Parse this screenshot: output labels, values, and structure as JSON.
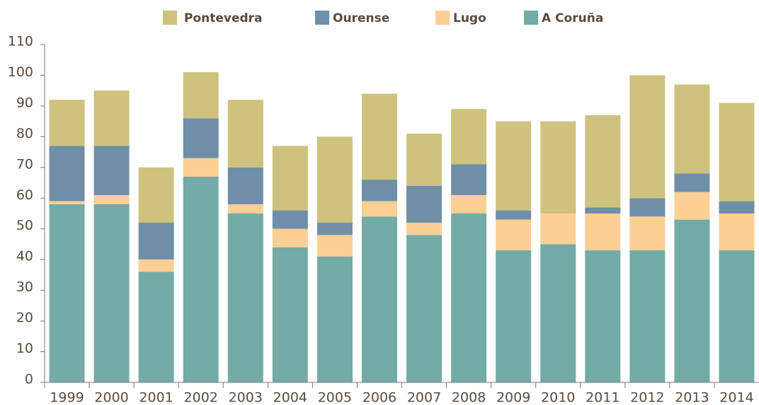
{
  "chart_data": {
    "type": "stacked_bar",
    "categories": [
      "1999",
      "2000",
      "2001",
      "2002",
      "2003",
      "2004",
      "2005",
      "2006",
      "2007",
      "2008",
      "2009",
      "2010",
      "2011",
      "2012",
      "2013",
      "2014"
    ],
    "series": [
      {
        "name": "Pontevedra",
        "color": "#cfc27e",
        "values": [
          15,
          18,
          18,
          15,
          22,
          21,
          28,
          28,
          17,
          18,
          29,
          30,
          30,
          40,
          29,
          32
        ]
      },
      {
        "name": "Ourense",
        "color": "#6f8fa8",
        "values": [
          18,
          16,
          12,
          13,
          12,
          6,
          4,
          7,
          12,
          10,
          3,
          0,
          2,
          6,
          6,
          4
        ]
      },
      {
        "name": "Lugo",
        "color": "#fccf95",
        "values": [
          1,
          3,
          4,
          6,
          3,
          6,
          7,
          5,
          4,
          6,
          10,
          10,
          12,
          11,
          9,
          12
        ]
      },
      {
        "name": "A Coruña",
        "color": "#74aba6",
        "values": [
          58,
          58,
          36,
          67,
          55,
          44,
          41,
          54,
          48,
          55,
          43,
          45,
          43,
          43,
          53,
          43
        ]
      }
    ],
    "ylim": [
      0,
      110
    ],
    "yticks": [
      0,
      10,
      20,
      30,
      40,
      50,
      60,
      70,
      80,
      90,
      100,
      110
    ],
    "legend": "top"
  }
}
